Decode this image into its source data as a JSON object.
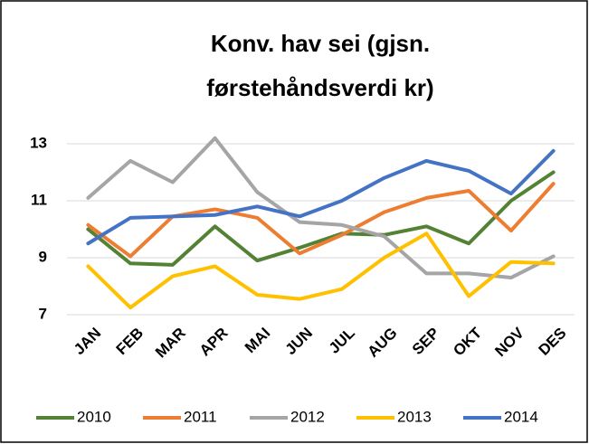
{
  "chart_data": {
    "type": "line",
    "title": [
      "Konv. hav sei (gjsn.",
      "førstehåndsverdi kr)"
    ],
    "categories": [
      "JAN",
      "FEB",
      "MAR",
      "APR",
      "MAI",
      "JUN",
      "JUL",
      "AUG",
      "SEP",
      "OKT",
      "NOV",
      "DES"
    ],
    "series": [
      {
        "name": "2010",
        "color": "#548235",
        "values": [
          10.0,
          8.8,
          8.75,
          10.1,
          8.9,
          9.35,
          9.85,
          9.8,
          10.1,
          9.5,
          11.0,
          12.0
        ]
      },
      {
        "name": "2011",
        "color": "#ed7d31",
        "values": [
          10.15,
          9.05,
          10.45,
          10.7,
          10.4,
          9.15,
          9.8,
          10.6,
          11.1,
          11.35,
          9.95,
          11.6
        ]
      },
      {
        "name": "2012",
        "color": "#a5a5a5",
        "values": [
          11.1,
          12.4,
          11.65,
          13.2,
          11.3,
          10.25,
          10.15,
          9.75,
          8.45,
          8.45,
          8.3,
          9.05
        ]
      },
      {
        "name": "2013",
        "color": "#ffc000",
        "values": [
          8.7,
          7.25,
          8.35,
          8.7,
          7.7,
          7.55,
          7.9,
          9.0,
          9.85,
          7.65,
          8.85,
          8.8
        ]
      },
      {
        "name": "2014",
        "color": "#4472c4",
        "values": [
          9.5,
          10.4,
          10.45,
          10.5,
          10.8,
          10.45,
          11.0,
          11.8,
          12.4,
          12.05,
          11.25,
          12.75
        ]
      }
    ],
    "ylim": [
      7,
      13
    ],
    "yticks": [
      7,
      9,
      11,
      13
    ],
    "grid": true,
    "legend": "bottom"
  }
}
